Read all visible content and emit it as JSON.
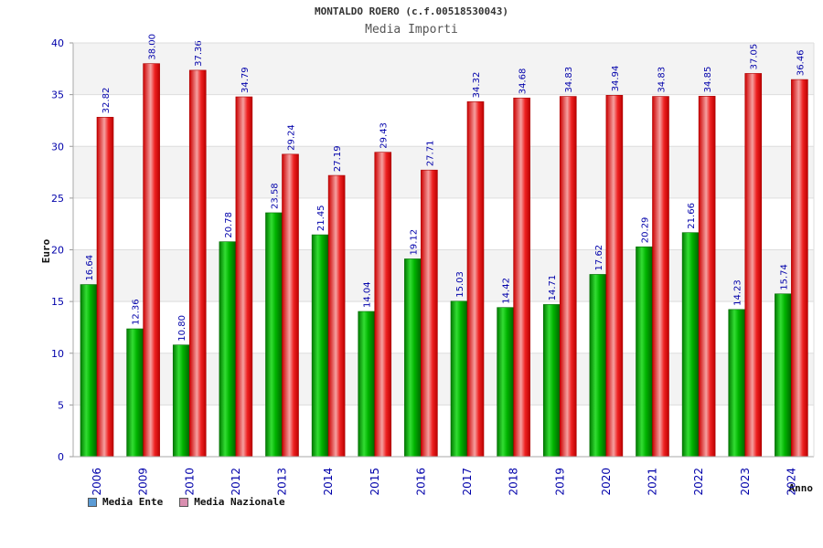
{
  "chart_data": {
    "type": "bar",
    "title": "MONTALDO ROERO (c.f.00518530043)",
    "subtitle": "Media Importi",
    "xlabel": "Anno",
    "ylabel": "Euro",
    "ylim": [
      0,
      40
    ],
    "yticks": [
      0,
      5,
      10,
      15,
      20,
      25,
      30,
      35,
      40
    ],
    "grid": true,
    "legend_position": "bottom-left",
    "categories": [
      "2006",
      "2009",
      "2010",
      "2012",
      "2013",
      "2014",
      "2015",
      "2016",
      "2017",
      "2018",
      "2019",
      "2020",
      "2021",
      "2022",
      "2023",
      "2024"
    ],
    "series": [
      {
        "name": "Media Ente",
        "color": "#00b000",
        "legend_color": "#5b9bd5",
        "values": [
          16.64,
          12.36,
          10.8,
          20.78,
          23.58,
          21.45,
          14.04,
          19.12,
          15.03,
          14.42,
          14.71,
          17.62,
          20.29,
          21.66,
          14.23,
          15.74
        ],
        "labels": [
          "16.64",
          "12.36",
          "10.80",
          "20.78",
          "23.58",
          "21.45",
          "14.04",
          "19.12",
          "15.03",
          "14.42",
          "14.71",
          "17.62",
          "20.29",
          "21.66",
          "14.23",
          "15.74"
        ]
      },
      {
        "name": "Media Nazionale",
        "color": "#ee1111",
        "legend_color": "#d98fb0",
        "values": [
          32.82,
          38.0,
          37.36,
          34.79,
          29.24,
          27.19,
          29.43,
          27.71,
          34.32,
          34.68,
          34.83,
          34.94,
          34.83,
          34.85,
          37.05,
          36.46
        ],
        "labels": [
          "32.82",
          "38.00",
          "37.36",
          "34.79",
          "29.24",
          "27.19",
          "29.43",
          "27.71",
          "34.32",
          "34.68",
          "34.83",
          "34.94",
          "34.83",
          "34.85",
          "37.05",
          "36.46"
        ]
      }
    ]
  }
}
